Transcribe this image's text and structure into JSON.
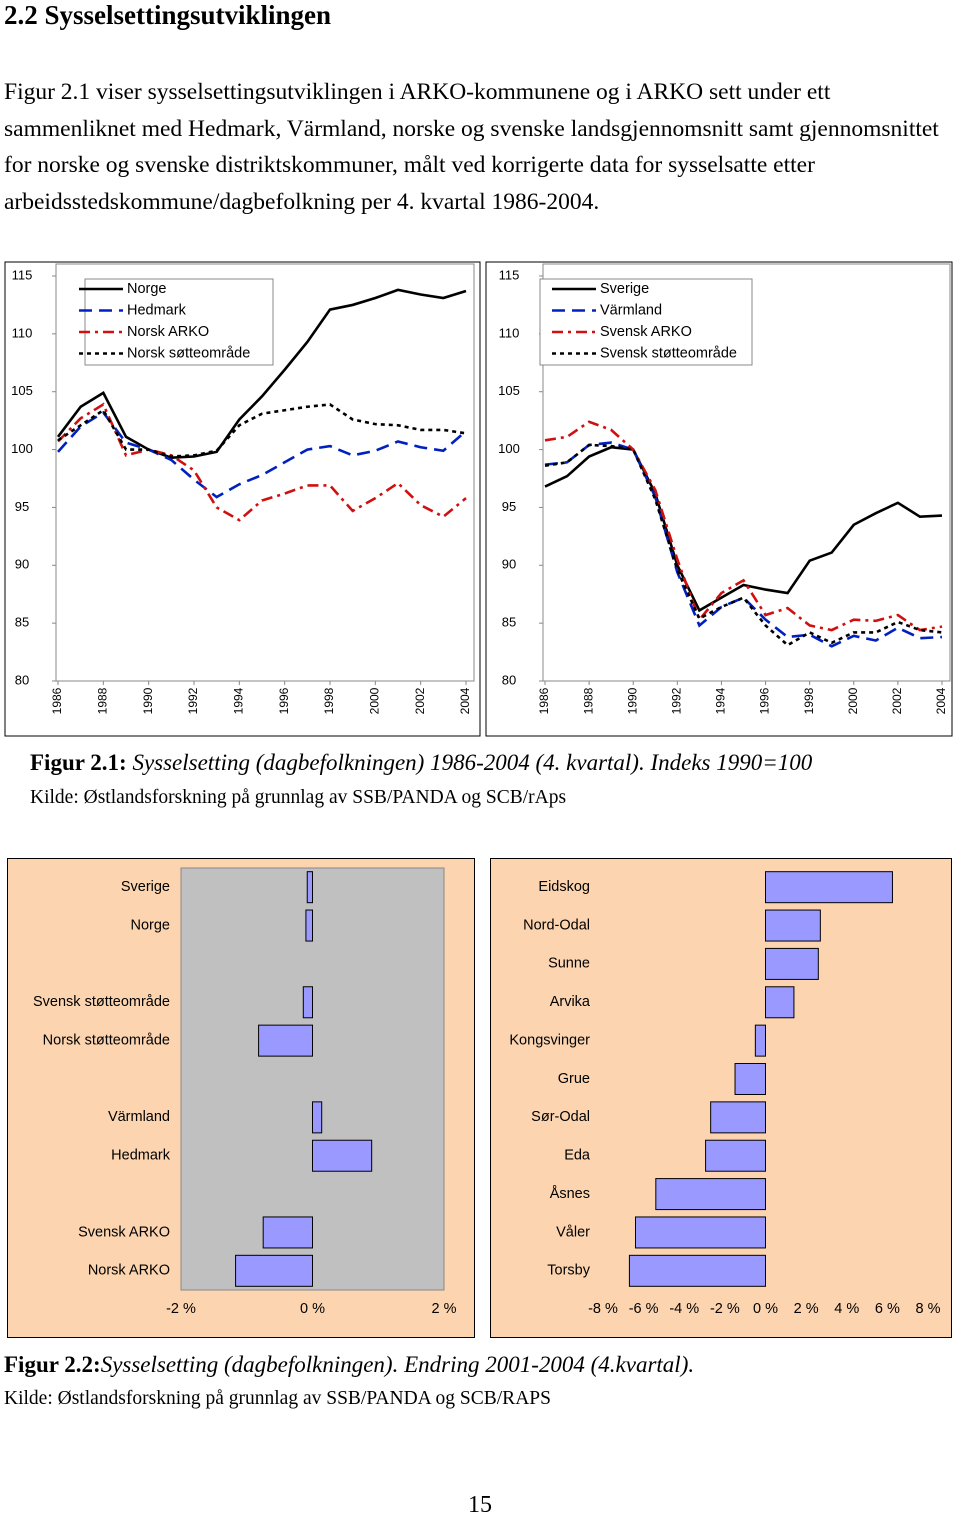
{
  "heading": "2.2 Sysselsettingsutviklingen",
  "paragraph": "Figur 2.1 viser sysselsettingsutviklingen i ARKO-kommunene og i ARKO sett under ett sammenliknet med Hedmark, Värmland, norske og svenske landsgjennomsnitt samt gjennomsnittet for norske og svenske distriktskommuner, målt ved korrigerte data for sysselsatte etter arbeidsstedskommune/dagbefolkning per 4. kvartal 1986-2004.",
  "figure1": {
    "label": "Figur 2.1:",
    "caption": "Sysselsetting (dagbefolkningen) 1986-2004 (4. kvartal).",
    "caption_note": "Indeks 1990=100",
    "source": "Kilde: Østlandsforskning på grunnlag av SSB/PANDA og SCB/rAps"
  },
  "figure2": {
    "label": "Figur  2.2:",
    "caption": "Sysselsetting (dagbefolkningen). Endring  2001-2004 (4.kvartal).",
    "source": "Kilde: Østlandsforskning på grunnlag av SSB/PANDA og SCB/RAPS"
  },
  "page_number": "15",
  "chart_data": [
    {
      "type": "line",
      "legend": "top",
      "x": [
        1986,
        1987,
        1988,
        1989,
        1990,
        1991,
        1992,
        1993,
        1994,
        1995,
        1996,
        1997,
        1998,
        1999,
        2000,
        2001,
        2002,
        2003,
        2004
      ],
      "xlim": [
        1986,
        2004
      ],
      "xticks": [
        1986,
        1988,
        1990,
        1992,
        1994,
        1996,
        1998,
        2000,
        2002,
        2004
      ],
      "ylim": [
        80,
        115
      ],
      "yticks": [
        80,
        85,
        90,
        95,
        100,
        105,
        110,
        115
      ],
      "series": [
        {
          "name": "Norge",
          "color": "#000000",
          "dash": "solid",
          "values": [
            101.1,
            103.7,
            104.9,
            101.1,
            100,
            99.3,
            99.4,
            99.8,
            102.6,
            104.6,
            106.9,
            109.3,
            112.1,
            112.5,
            113.1,
            113.8,
            113.4,
            113.1,
            113.7
          ]
        },
        {
          "name": "Hedmark",
          "color": "#0020c0",
          "dash": "dashed",
          "values": [
            99.8,
            102.0,
            103.2,
            100.6,
            100,
            99.1,
            97.4,
            95.9,
            97.0,
            97.8,
            98.9,
            100.0,
            100.3,
            99.5,
            99.9,
            100.7,
            100.2,
            99.9,
            101.6
          ]
        },
        {
          "name": "Norsk ARKO",
          "color": "#d01010",
          "dash": "dashdot",
          "values": [
            100.7,
            102.7,
            103.9,
            99.5,
            100,
            99.5,
            98.2,
            95.0,
            93.9,
            95.6,
            96.2,
            96.9,
            96.9,
            94.7,
            95.8,
            97.1,
            95.2,
            94.2,
            95.8
          ]
        },
        {
          "name": "Norsk søtteområde",
          "color": "#000000",
          "dash": "dotted",
          "values": [
            100.8,
            102.1,
            103.4,
            100,
            100,
            99.4,
            99.5,
            99.9,
            102.1,
            103.1,
            103.4,
            103.7,
            103.9,
            102.6,
            102.2,
            102.1,
            101.7,
            101.7,
            101.4
          ]
        }
      ]
    },
    {
      "type": "line",
      "legend": "top",
      "x": [
        1986,
        1987,
        1988,
        1989,
        1990,
        1991,
        1992,
        1993,
        1994,
        1995,
        1996,
        1997,
        1998,
        1999,
        2000,
        2001,
        2002,
        2003,
        2004
      ],
      "xlim": [
        1986,
        2004
      ],
      "xticks": [
        1986,
        1988,
        1990,
        1992,
        1994,
        1996,
        1998,
        2000,
        2002,
        2004
      ],
      "ylim": [
        80,
        115
      ],
      "yticks": [
        80,
        85,
        90,
        95,
        100,
        105,
        110,
        115
      ],
      "series": [
        {
          "name": "Sverige",
          "color": "#000000",
          "dash": "solid",
          "values": [
            96.8,
            97.7,
            99.4,
            100.2,
            100,
            96.2,
            90.0,
            86.1,
            87.2,
            88.3,
            87.9,
            87.6,
            90.4,
            91.1,
            93.5,
            94.5,
            95.4,
            94.2,
            94.3
          ]
        },
        {
          "name": "Värmland",
          "color": "#0020c0",
          "dash": "dashed",
          "values": [
            98.7,
            98.9,
            100.4,
            100.6,
            100,
            95.9,
            89.4,
            84.8,
            86.4,
            87.2,
            85.3,
            83.8,
            84.0,
            83.0,
            83.9,
            83.5,
            84.6,
            83.7,
            83.8
          ]
        },
        {
          "name": "Svensk ARKO",
          "color": "#d01010",
          "dash": "dashdot",
          "values": [
            100.8,
            101.1,
            102.4,
            101.7,
            100,
            96.5,
            90.5,
            85.3,
            87.6,
            88.7,
            85.7,
            86.3,
            84.8,
            84.4,
            85.3,
            85.2,
            85.7,
            84.4,
            84.7
          ]
        },
        {
          "name": "Svensk støtteområde",
          "color": "#000000",
          "dash": "dotted",
          "values": [
            98.6,
            98.9,
            100.4,
            100.3,
            100,
            95.7,
            89.6,
            85.4,
            86.4,
            87.2,
            84.8,
            83.1,
            84.2,
            83.3,
            84.2,
            84.2,
            85.1,
            84.4,
            84.2
          ]
        }
      ]
    },
    {
      "type": "hbar",
      "color": "#9999ff",
      "background": "#fcd5b0",
      "plot_background": "#c0c0c0",
      "categories": [
        "Sverige",
        "Norge",
        null,
        "Svensk støtteområde",
        "Norsk støtteområde",
        null,
        "Värmland",
        "Hedmark",
        null,
        "Svensk ARKO",
        "Norsk ARKO"
      ],
      "values": [
        -0.08,
        -0.1,
        null,
        -0.14,
        -0.82,
        null,
        0.14,
        0.9,
        null,
        -0.75,
        -1.17
      ],
      "xlim": [
        -2,
        2
      ],
      "xticks": [
        {
          "value": -2,
          "label": "-2 %"
        },
        {
          "value": 0,
          "label": "0 %"
        },
        {
          "value": 2,
          "label": "2 %"
        }
      ]
    },
    {
      "type": "hbar",
      "color": "#9999ff",
      "background": "#fcd5b0",
      "plot_background": "#fcd5b0",
      "categories": [
        "Eidskog",
        "Nord-Odal",
        "Sunne",
        "Arvika",
        "Kongsvinger",
        "Grue",
        "Sør-Odal",
        "Eda",
        "Åsnes",
        "Våler",
        "Torsby"
      ],
      "values": [
        6.25,
        2.7,
        2.6,
        1.4,
        -0.5,
        -1.5,
        -2.7,
        -2.95,
        -5.4,
        -6.4,
        -6.7
      ],
      "xlim": [
        -8,
        8
      ],
      "xticks": [
        {
          "value": -8,
          "label": "-8 %"
        },
        {
          "value": -6,
          "label": "-6 %"
        },
        {
          "value": -4,
          "label": "-4 %"
        },
        {
          "value": -2,
          "label": "-2 %"
        },
        {
          "value": 0,
          "label": "0 %"
        },
        {
          "value": 2,
          "label": "2 %"
        },
        {
          "value": 4,
          "label": "4 %"
        },
        {
          "value": 6,
          "label": "6 %"
        },
        {
          "value": 8,
          "label": "8 %"
        }
      ]
    }
  ]
}
